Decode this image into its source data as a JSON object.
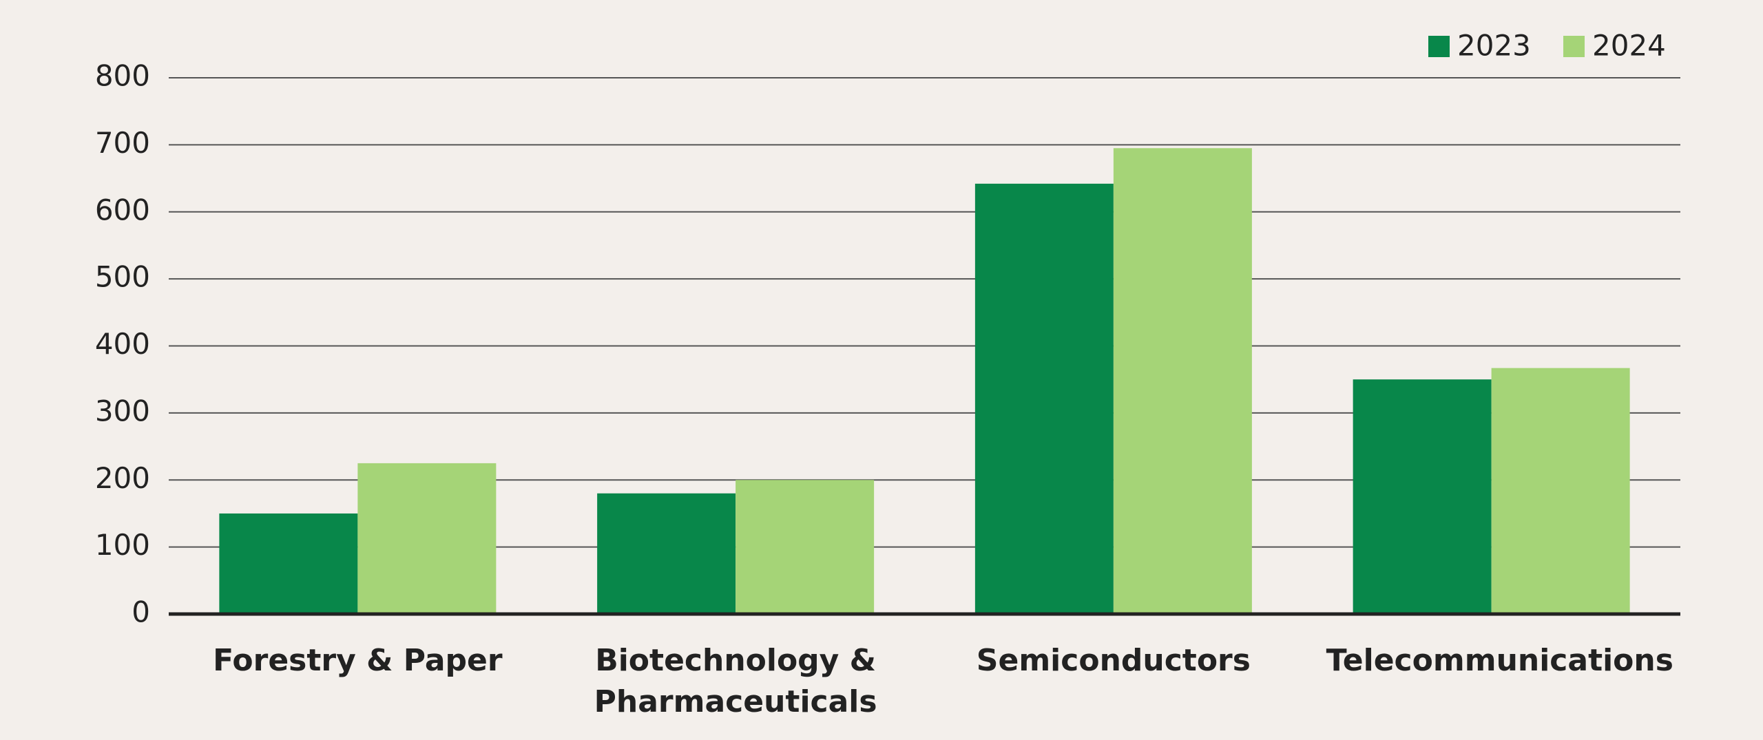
{
  "chart_data": {
    "type": "bar",
    "categories": [
      "Forestry & Paper",
      "Biotechnology & Pharmaceuticals",
      "Semiconductors",
      "Telecommunications"
    ],
    "series": [
      {
        "name": "2023",
        "color": "#08874a",
        "values": [
          150,
          180,
          642,
          350
        ]
      },
      {
        "name": "2024",
        "color": "#a5d477",
        "values": [
          225,
          200,
          695,
          367
        ]
      }
    ],
    "ylim": [
      0,
      800
    ],
    "yticks": [
      0,
      100,
      200,
      300,
      400,
      500,
      600,
      700,
      800
    ],
    "grid": true,
    "legend": "top-right"
  }
}
